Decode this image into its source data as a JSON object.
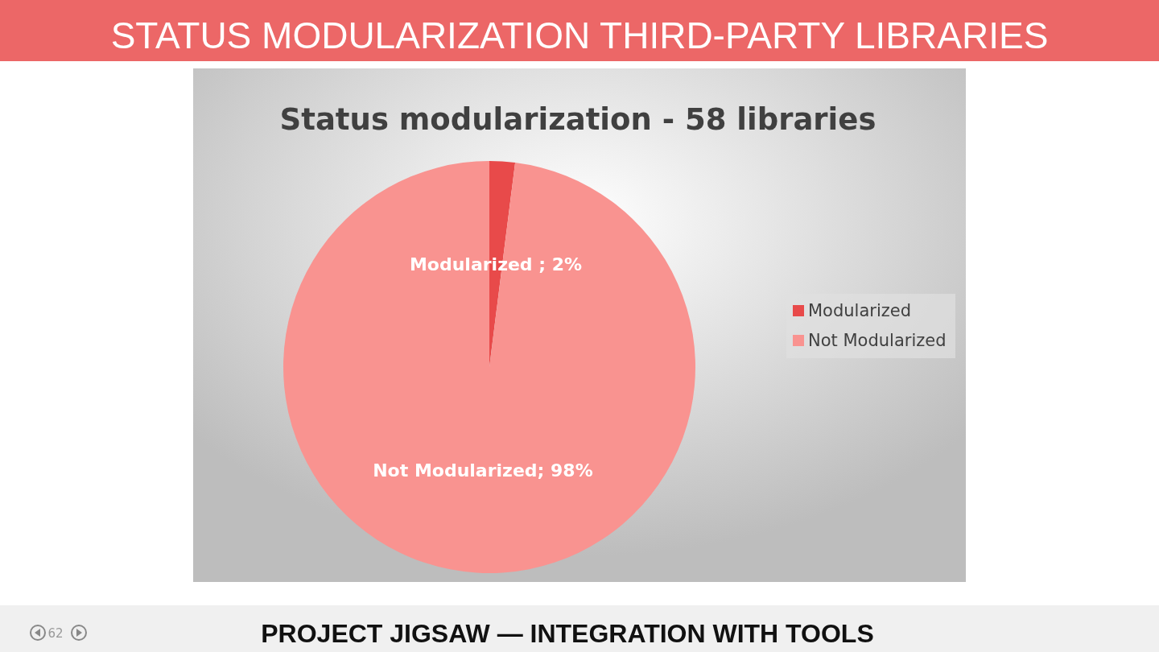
{
  "chart_data": {
    "type": "pie",
    "title": "Status modularization - 58 libraries",
    "categories": [
      "Modularized",
      "Not Modularized"
    ],
    "values": [
      2,
      98
    ],
    "colors": [
      "#e84a4a",
      "#f99390"
    ],
    "value_labels": [
      "Modularized ; 2%",
      "Not Modularized; 98%"
    ],
    "legend": "right",
    "annotations": [
      "STATUS MODULARIZATION THIRD-PARTY LIBRARIES",
      "PROJECT JIGSAW — INTEGRATION WITH TOOLS",
      "62"
    ]
  }
}
